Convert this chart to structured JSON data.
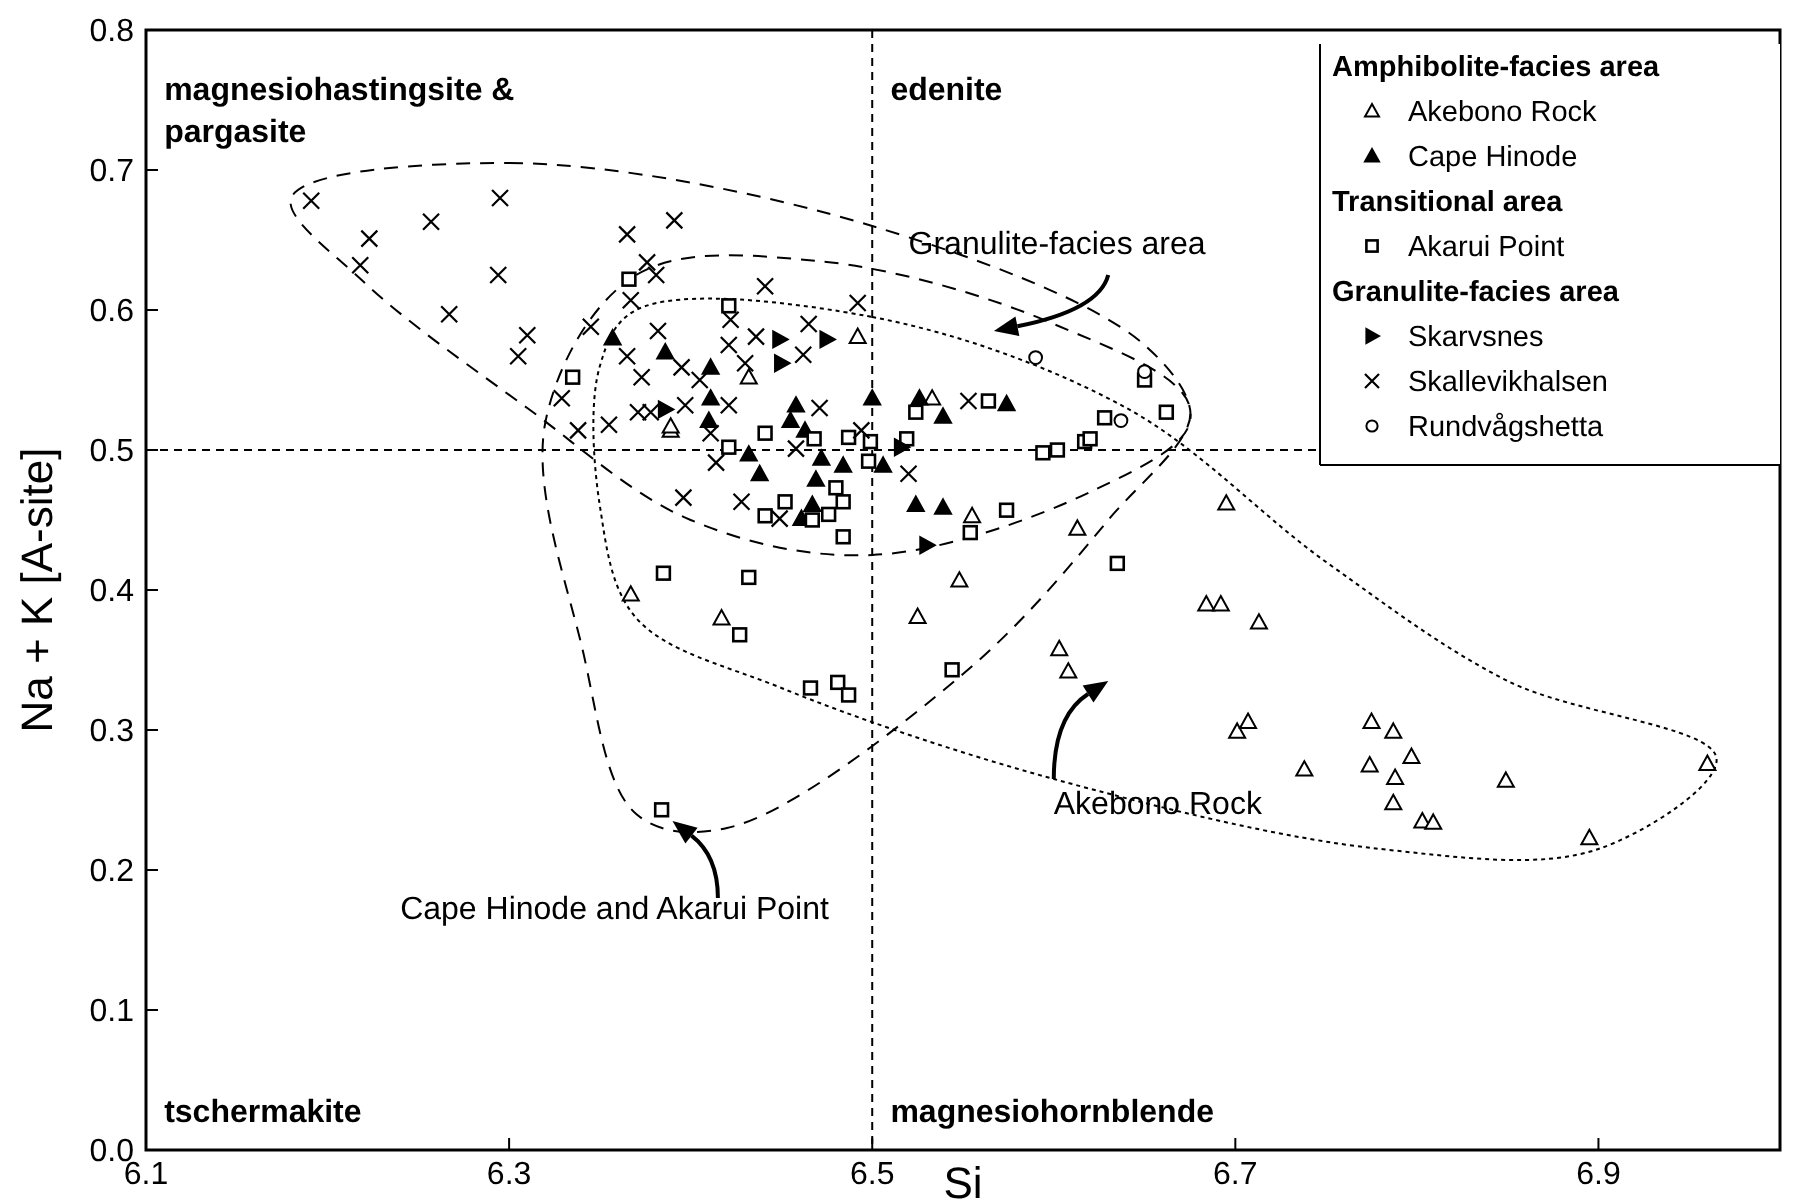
{
  "chart_data": {
    "type": "scatter",
    "xlabel": "Si",
    "ylabel": "Na + K [A-site]",
    "xlim": [
      6.1,
      7.0
    ],
    "xticks": [
      6.1,
      6.3,
      6.5,
      6.7,
      6.9
    ],
    "ylim": [
      0,
      0.8
    ],
    "yticks": [
      {
        "value": 0,
        "label": "0.0"
      },
      0.1,
      0.2,
      0.3,
      0.4,
      0.5,
      0.6,
      0.7,
      0.8
    ],
    "grid": false,
    "legend": "top right",
    "ref_lines": [
      {
        "axis": "x",
        "value": 6.5,
        "line_style": "dashed"
      },
      {
        "axis": "y",
        "value": 0.5,
        "line_style": "dashed"
      }
    ],
    "annotations": [
      "magnesiohastingsite & pargasite",
      "edenite",
      "tschermakite",
      "magnesiohornblende",
      "Granulite-facies area",
      "Akebono Rock",
      "Cape Hinode and Akarui Point",
      "Amphibolite-facies area",
      "Transitional area",
      "Granulite-facies area"
    ],
    "series": [
      {
        "name": "Akebono Rock",
        "color": "#000000",
        "marker": "triangle",
        "x": [
          6.389,
          6.492,
          6.533,
          6.555,
          6.548,
          6.613,
          6.432,
          6.389,
          6.695,
          6.603,
          6.608,
          6.684,
          6.692,
          6.713,
          6.701,
          6.707,
          6.775,
          6.787,
          6.738,
          6.774,
          6.797,
          6.788,
          6.787,
          6.803,
          6.809,
          6.849,
          6.895,
          6.96,
          6.367,
          6.417,
          6.525
        ],
        "values": [
          0.514,
          0.581,
          0.537,
          0.453,
          0.407,
          0.444,
          0.552,
          0.517,
          0.462,
          0.358,
          0.342,
          0.39,
          0.39,
          0.377,
          0.299,
          0.306,
          0.306,
          0.299,
          0.272,
          0.275,
          0.281,
          0.266,
          0.248,
          0.235,
          0.234,
          0.264,
          0.223,
          0.276,
          0.397,
          0.38,
          0.381
        ]
      },
      {
        "name": "Cape Hinode",
        "color": "#000000",
        "marker": "triangle-filled",
        "x": [
          6.357,
          6.458,
          6.5,
          6.526,
          6.539,
          6.574,
          6.432,
          6.438,
          6.472,
          6.484,
          6.506,
          6.524,
          6.539,
          6.469,
          6.467,
          6.461,
          6.463,
          6.455,
          6.411,
          6.41,
          6.411,
          6.386
        ],
        "values": [
          0.58,
          0.532,
          0.537,
          0.537,
          0.524,
          0.533,
          0.497,
          0.483,
          0.494,
          0.489,
          0.489,
          0.461,
          0.459,
          0.479,
          0.461,
          0.451,
          0.514,
          0.521,
          0.537,
          0.521,
          0.559,
          0.57
        ]
      },
      {
        "name": "Akarui Point",
        "color": "#000000",
        "marker": "square",
        "x": [
          6.366,
          6.335,
          6.421,
          6.441,
          6.421,
          6.468,
          6.487,
          6.499,
          6.498,
          6.519,
          6.524,
          6.564,
          6.48,
          6.484,
          6.476,
          6.467,
          6.452,
          6.441,
          6.484,
          6.574,
          6.554,
          6.594,
          6.602,
          6.617,
          6.385,
          6.432,
          6.65,
          6.628,
          6.662,
          6.62,
          6.635,
          6.427,
          6.466,
          6.481,
          6.487,
          6.544,
          6.384
        ],
        "values": [
          0.622,
          0.552,
          0.603,
          0.512,
          0.502,
          0.508,
          0.509,
          0.506,
          0.492,
          0.508,
          0.527,
          0.535,
          0.473,
          0.463,
          0.454,
          0.45,
          0.463,
          0.453,
          0.438,
          0.457,
          0.441,
          0.498,
          0.5,
          0.506,
          0.412,
          0.409,
          0.55,
          0.523,
          0.527,
          0.508,
          0.419,
          0.368,
          0.33,
          0.334,
          0.325,
          0.343,
          0.243
        ]
      },
      {
        "name": "Skarvsnes",
        "color": "#000000",
        "marker": "triangle-right",
        "x": [
          6.449,
          6.45,
          6.475,
          6.53,
          6.516,
          6.386
        ],
        "values": [
          0.579,
          0.562,
          0.579,
          0.432,
          0.502,
          0.529
        ]
      },
      {
        "name": "Skallevikhalsen",
        "color": "#000000",
        "marker": "cross",
        "x": [
          6.191,
          6.223,
          6.218,
          6.257,
          6.295,
          6.294,
          6.267,
          6.31,
          6.305,
          6.365,
          6.391,
          6.376,
          6.381,
          6.367,
          6.345,
          6.329,
          6.338,
          6.355,
          6.365,
          6.373,
          6.371,
          6.441,
          6.492,
          6.465,
          6.462,
          6.471,
          6.553,
          6.494,
          6.458,
          6.414,
          6.52,
          6.396,
          6.428,
          6.449,
          6.382,
          6.395,
          6.405,
          6.421,
          6.43,
          6.397,
          6.421,
          6.378,
          6.411,
          6.436,
          6.422
        ],
        "values": [
          0.678,
          0.651,
          0.632,
          0.663,
          0.68,
          0.625,
          0.597,
          0.582,
          0.567,
          0.654,
          0.664,
          0.634,
          0.625,
          0.607,
          0.588,
          0.537,
          0.514,
          0.518,
          0.567,
          0.552,
          0.527,
          0.617,
          0.605,
          0.59,
          0.568,
          0.53,
          0.535,
          0.514,
          0.501,
          0.491,
          0.483,
          0.466,
          0.463,
          0.451,
          0.585,
          0.559,
          0.55,
          0.575,
          0.562,
          0.532,
          0.532,
          0.527,
          0.512,
          0.581,
          0.593
        ]
      },
      {
        "name": "Rundvågshetta",
        "color": "#000000",
        "marker": "circle",
        "x": [
          6.59,
          6.65,
          6.637
        ],
        "values": [
          0.566,
          0.556,
          0.521
        ]
      }
    ]
  }
}
